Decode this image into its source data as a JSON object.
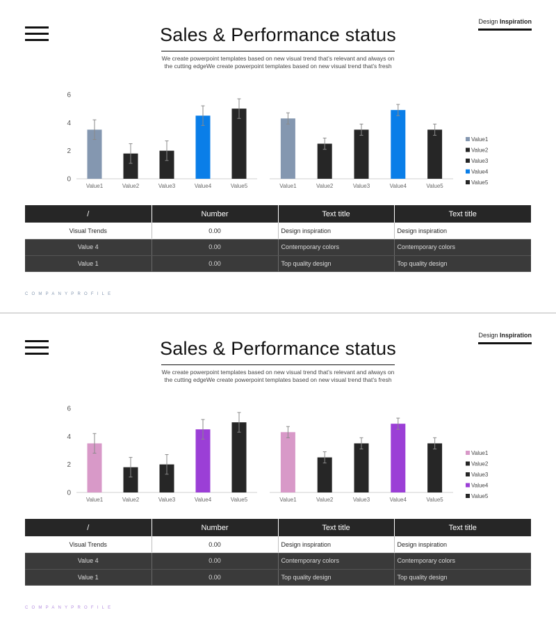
{
  "slides": [
    {
      "menu_icon": "hamburger-menu-icon",
      "brand": {
        "light": "Design ",
        "strong": "Inspiration"
      },
      "title": "Sales & Performance status",
      "subtitle": "We create powerpoint templates based on new visual trend that’s relevant and always on the cutting edgeWe create powerpoint templates based on new visual trend that’s fresh",
      "table": {
        "headers": [
          "/",
          "Number",
          "Text title",
          "Text title"
        ],
        "rows": [
          [
            "Visual Trends",
            "0.00",
            "Design inspiration",
            "Design inspiration"
          ],
          [
            "Value 4",
            "0.00",
            "Contemporary colors",
            "Contemporary colors"
          ],
          [
            "Value 1",
            "0.00",
            "Top quality design",
            "Top quality design"
          ]
        ]
      },
      "footer": "COMPANYPROFILE",
      "colors": {
        "accent1": "#8497b0",
        "accent2": "#0a7ee8",
        "dark": "#262626",
        "footer": "#8497b0"
      }
    },
    {
      "menu_icon": "hamburger-menu-icon",
      "brand": {
        "light": "Design ",
        "strong": "Inspiration"
      },
      "title": "Sales & Performance status",
      "subtitle": "We create powerpoint templates based on new visual trend that’s relevant and always on the cutting edgeWe create powerpoint templates based on new visual trend that’s fresh",
      "table": {
        "headers": [
          "/",
          "Number",
          "Text title",
          "Text title"
        ],
        "rows": [
          [
            "Visual Trends",
            "0.00",
            "Design inspiration",
            "Design inspiration"
          ],
          [
            "Value 4",
            "0.00",
            "Contemporary colors",
            "Contemporary colors"
          ],
          [
            "Value 1",
            "0.00",
            "Top quality design",
            "Top quality design"
          ]
        ]
      },
      "footer": "COMPANYPROFILE",
      "colors": {
        "accent1": "#d899c8",
        "accent2": "#9b3fd6",
        "dark": "#262626",
        "footer": "#b58ee0"
      }
    }
  ],
  "chart_data": [
    {
      "type": "bar",
      "slide": 1,
      "panel": "left",
      "categories": [
        "Value1",
        "Value2",
        "Value3",
        "Value4",
        "Value5"
      ],
      "values": [
        3.5,
        1.8,
        2.0,
        4.5,
        5.0
      ],
      "errors": [
        0.7,
        0.7,
        0.7,
        0.7,
        0.7
      ],
      "ylim": [
        0,
        6
      ],
      "yticks": [
        0,
        2,
        4,
        6
      ],
      "legend": [
        "Value1",
        "Value2",
        "Value3",
        "Value4",
        "Value5"
      ]
    },
    {
      "type": "bar",
      "slide": 1,
      "panel": "right",
      "categories": [
        "Value1",
        "Value2",
        "Value3",
        "Value4",
        "Value5"
      ],
      "values": [
        4.3,
        2.5,
        3.5,
        4.9,
        3.5
      ],
      "errors": [
        0.4,
        0.4,
        0.4,
        0.4,
        0.4
      ],
      "ylim": [
        0,
        6
      ],
      "legend": [
        "Value1",
        "Value2",
        "Value3",
        "Value4",
        "Value5"
      ]
    },
    {
      "type": "bar",
      "slide": 2,
      "panel": "left",
      "categories": [
        "Value1",
        "Value2",
        "Value3",
        "Value4",
        "Value5"
      ],
      "values": [
        3.5,
        1.8,
        2.0,
        4.5,
        5.0
      ],
      "errors": [
        0.7,
        0.7,
        0.7,
        0.7,
        0.7
      ],
      "ylim": [
        0,
        6
      ],
      "yticks": [
        0,
        2,
        4,
        6
      ],
      "legend": [
        "Value1",
        "Value2",
        "Value3",
        "Value4",
        "Value5"
      ]
    },
    {
      "type": "bar",
      "slide": 2,
      "panel": "right",
      "categories": [
        "Value1",
        "Value2",
        "Value3",
        "Value4",
        "Value5"
      ],
      "values": [
        4.3,
        2.5,
        3.5,
        4.9,
        3.5
      ],
      "errors": [
        0.4,
        0.4,
        0.4,
        0.4,
        0.4
      ],
      "ylim": [
        0,
        6
      ],
      "legend": [
        "Value1",
        "Value2",
        "Value3",
        "Value4",
        "Value5"
      ]
    }
  ]
}
